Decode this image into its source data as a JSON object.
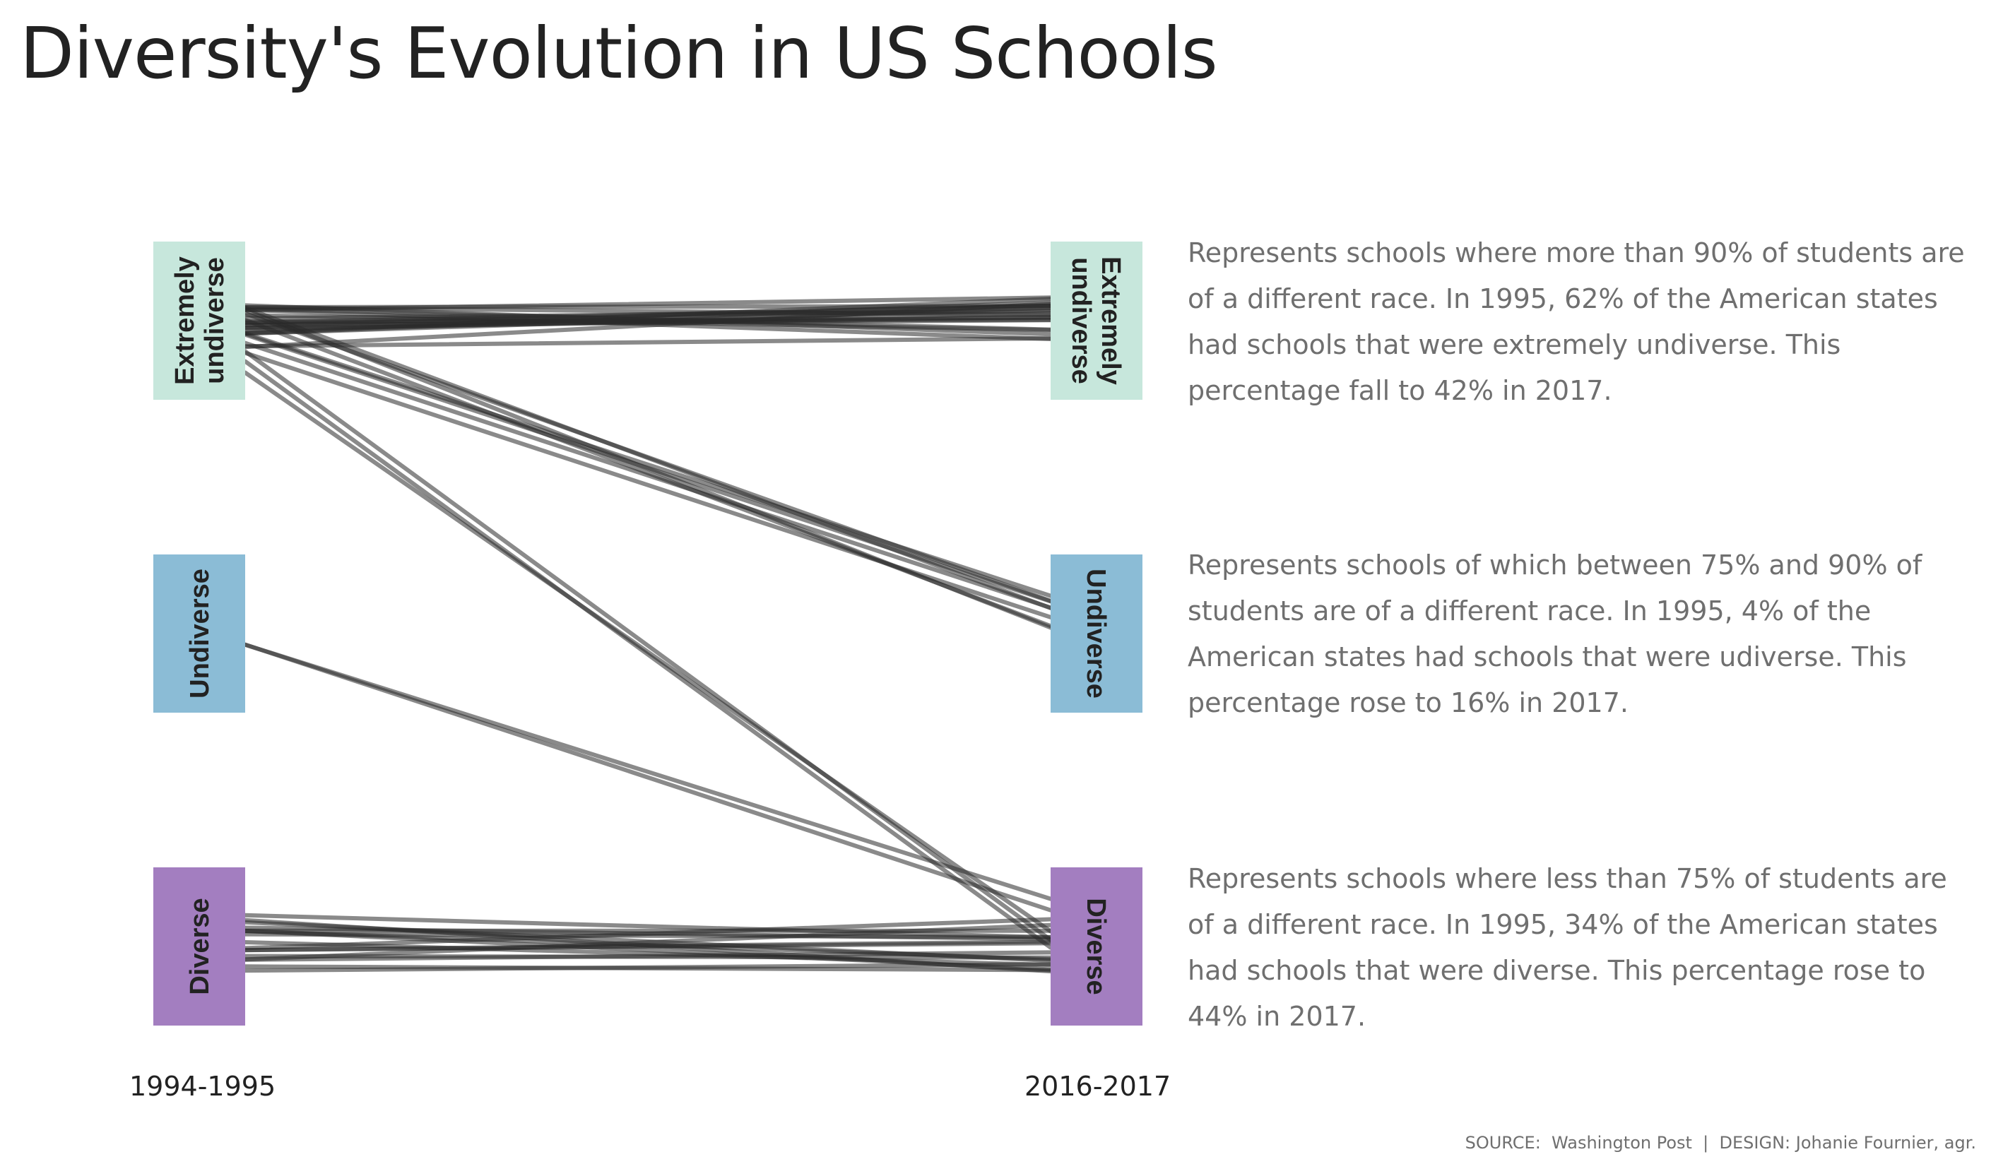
{
  "title": "Diversity's Evolution in US Schools",
  "colors": {
    "extremely_undiverse": "#c7e7dc",
    "undiverse": "#8bbcd6",
    "diverse": "#a37ec0",
    "flow_line": "#2a2a2a",
    "description_text": "#6f6f6f",
    "title_text": "#222222"
  },
  "chart_data": {
    "type": "parallel_sets",
    "periods": [
      "1994-1995",
      "2016-2017"
    ],
    "categories": [
      {
        "id": "extremely_undiverse",
        "label": "Extremely undiverse",
        "label_lines": [
          "Extremely",
          "undiverse"
        ],
        "share_1995_pct": 62,
        "share_2017_pct": 42
      },
      {
        "id": "undiverse",
        "label": "Undiverse",
        "label_lines": [
          "Undiverse"
        ],
        "share_1995_pct": 4,
        "share_2017_pct": 16
      },
      {
        "id": "diverse",
        "label": "Diverse",
        "label_lines": [
          "Diverse"
        ],
        "share_1995_pct": 34,
        "share_2017_pct": 44
      }
    ],
    "flows": [
      {
        "from": "extremely_undiverse",
        "to": "extremely_undiverse",
        "count": 21
      },
      {
        "from": "extremely_undiverse",
        "to": "undiverse",
        "count": 8
      },
      {
        "from": "extremely_undiverse",
        "to": "diverse",
        "count": 3
      },
      {
        "from": "undiverse",
        "to": "diverse",
        "count": 2
      },
      {
        "from": "diverse",
        "to": "diverse",
        "count": 17
      }
    ]
  },
  "descriptions": [
    "Represents schools where more than 90% of students are of a different race. In 1995, 62% of the American states had schools that were extremely undiverse. This percentage fall to 42% in 2017.",
    "Represents schools of which between 75% and 90% of students are of a different race. In 1995, 4% of the American states had schools that were udiverse. This percentage rose to 16% in 2017.",
    "Represents schools where less than 75% of students are of a different race. In 1995, 34% of the American states had schools that were diverse. This percentage rose to 44% in 2017."
  ],
  "footer": "SOURCE:  Washington Post  |  DESIGN: Johanie Fournier, agr."
}
